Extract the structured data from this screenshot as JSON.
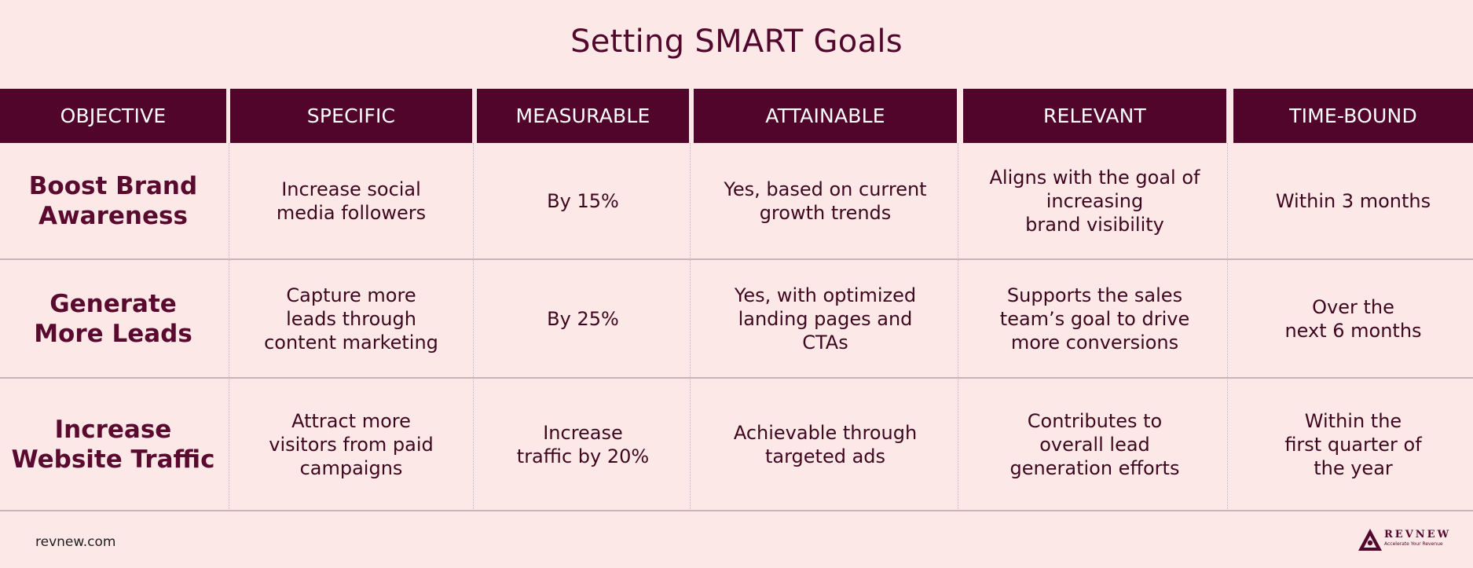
{
  "title": "Setting SMART Goals",
  "columns": [
    "OBJECTIVE",
    "SPECIFIC",
    "MEASURABLE",
    "ATTAINABLE",
    "RELEVANT",
    "TIME-BOUND"
  ],
  "rows": [
    {
      "objective": "Boost Brand\nAwareness",
      "specific": "Increase social\nmedia followers",
      "measurable": "By 15%",
      "attainable": "Yes, based on current\ngrowth trends",
      "relevant": "Aligns with the goal of\nincreasing\nbrand visibility",
      "time_bound": "Within 3 months"
    },
    {
      "objective": "Generate\nMore Leads",
      "specific": "Capture more\nleads through\ncontent marketing",
      "measurable": "By 25%",
      "attainable": "Yes, with optimized\nlanding pages and\nCTAs",
      "relevant": "Supports the sales\nteam’s goal to drive\nmore conversions",
      "time_bound": "Over the\nnext 6 months"
    },
    {
      "objective": "Increase\nWebsite Traffic",
      "specific": "Attract more\nvisitors from paid\ncampaigns",
      "measurable": "Increase\ntraffic by 20%",
      "attainable": "Achievable through\ntargeted ads",
      "relevant": "Contributes to\noverall lead\ngeneration efforts",
      "time_bound": "Within the\nfirst quarter of\nthe year"
    }
  ],
  "footer": {
    "url": "revnew.com",
    "logo_name": "REVNEW",
    "logo_tagline": "Accelerate Your Revenue"
  },
  "colors": {
    "background": "#fde8e8",
    "header_bg": "#52052b",
    "header_text": "#ffffff",
    "text": "#4a0a24"
  }
}
